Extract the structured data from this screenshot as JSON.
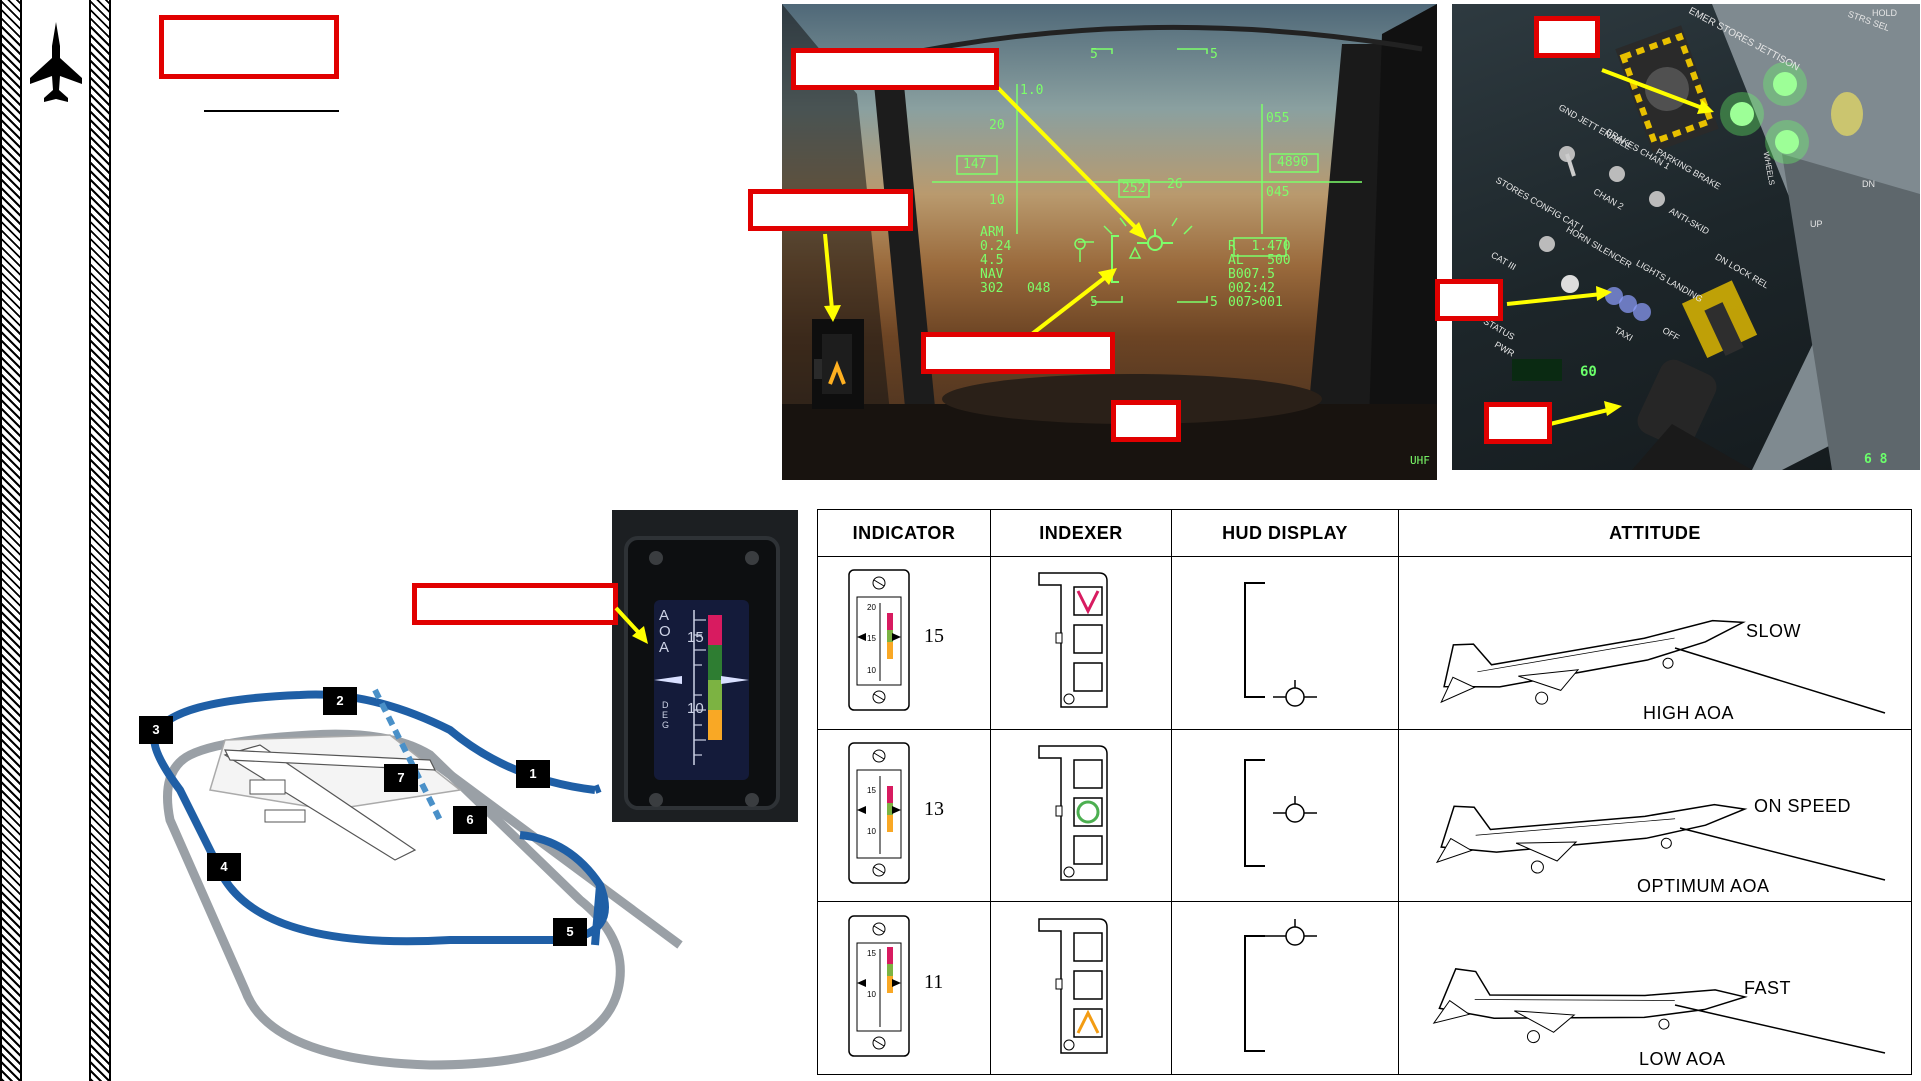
{
  "hud": {
    "pitch_top_left": "5",
    "pitch_top_right": "5",
    "alt_scale_10": "1.0",
    "pitch_20": "20",
    "pitch_10": "10",
    "speed_box": "147",
    "alt_box": "4890",
    "scale_055": "055",
    "scale_045": "045",
    "heading_252": "252",
    "heading_26": "26",
    "mode_lines": [
      "ARM",
      "0.24",
      "4.5",
      "NAV",
      "302   048"
    ],
    "right_lines": [
      "R  1.470",
      "AL   500",
      "B007.5",
      "002:42",
      "007>001"
    ],
    "pitch_bottom_left": "5",
    "pitch_bottom_right": "5",
    "uhf": "UHF"
  },
  "panel": {
    "labels": [
      "EMER STORES JETTISON",
      "GND JETT ENABLE",
      "BRAKES CHAN 1",
      "PARKING BRAKE",
      "CHAN 2",
      "ANTI-SKID",
      "STORES CONFIG CAT I",
      "CAT III",
      "HORN SILENCER",
      "LIGHTS LANDING",
      "TAXI",
      "OFF",
      "DN LOCK REL",
      "STATUS",
      "PWR",
      "UP",
      "DN",
      "WHEELS",
      "HOLD",
      "STRS SEL"
    ],
    "green_readout_1": "60",
    "green_readout_2": "6 8"
  },
  "aoa_gauge": {
    "label": "AOA",
    "mark_15": "15",
    "mark_10": "10",
    "deg": "DEG"
  },
  "pattern": {
    "markers": [
      "1",
      "2",
      "3",
      "4",
      "5",
      "6",
      "7"
    ]
  },
  "table": {
    "headers": [
      "INDICATOR",
      "INDEXER",
      "HUD DISPLAY",
      "ATTITUDE"
    ],
    "rows": [
      {
        "indicator_value": "15",
        "speed_label": "SLOW",
        "aoa_label": "HIGH AOA",
        "indexer_lit": "top"
      },
      {
        "indicator_value": "13",
        "speed_label": "ON SPEED",
        "aoa_label": "OPTIMUM AOA",
        "indexer_lit": "middle"
      },
      {
        "indicator_value": "11",
        "speed_label": "FAST",
        "aoa_label": "LOW AOA",
        "indexer_lit": "bottom"
      }
    ]
  },
  "colors": {
    "callout_red": "#e10000",
    "arrow_yellow": "#ffff00",
    "hud_green": "#7dff6a",
    "pattern_blue": "#1f5fa6",
    "pattern_gray": "#9aa0a6"
  }
}
